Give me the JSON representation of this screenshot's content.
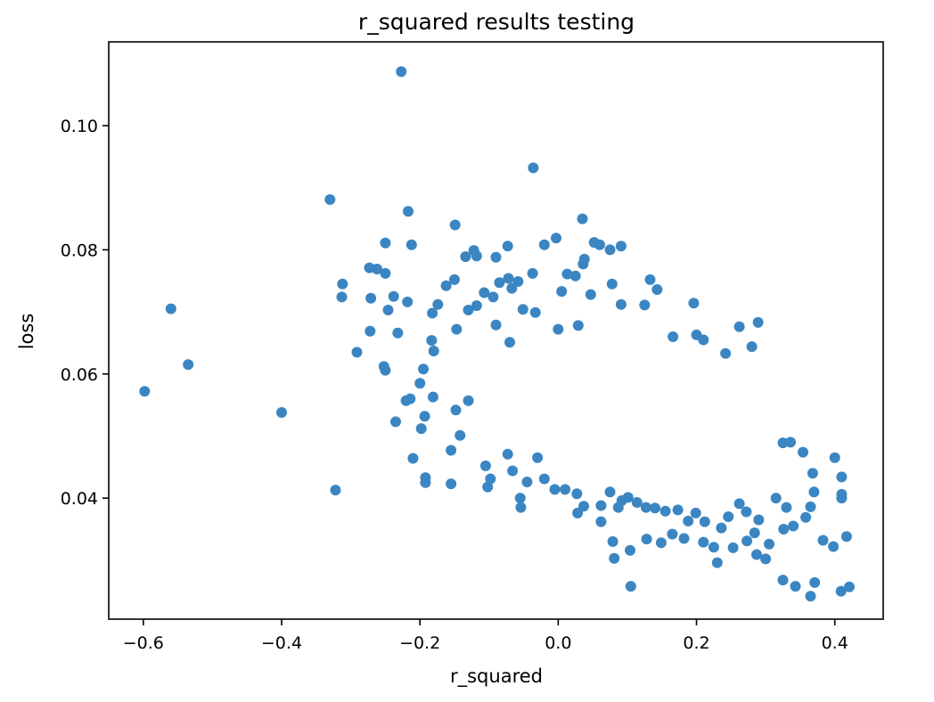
{
  "chart_data": {
    "type": "scatter",
    "title": "r_squared results testing",
    "xlabel": "r_squared",
    "ylabel": "loss",
    "xlim": [
      -0.65,
      0.47
    ],
    "ylim": [
      0.0205,
      0.1135
    ],
    "xticks": [
      -0.6,
      -0.4,
      -0.2,
      0.0,
      0.2,
      0.4
    ],
    "xtick_labels": [
      "−0.6",
      "−0.4",
      "−0.2",
      "0.0",
      "0.2",
      "0.4"
    ],
    "yticks": [
      0.04,
      0.06,
      0.08,
      0.1
    ],
    "ytick_labels": [
      "0.04",
      "0.06",
      "0.08",
      "0.10"
    ],
    "grid": false,
    "marker_color": "#3b86c2",
    "series": [
      {
        "points": [
          [
            -0.227,
            0.1087
          ],
          [
            -0.036,
            0.0932
          ],
          [
            -0.33,
            0.0881
          ],
          [
            -0.217,
            0.0862
          ],
          [
            0.035,
            0.085
          ],
          [
            -0.149,
            0.084
          ],
          [
            -0.25,
            0.0811
          ],
          [
            -0.212,
            0.0808
          ],
          [
            0.052,
            0.0812
          ],
          [
            0.06,
            0.0808
          ],
          [
            0.091,
            0.0806
          ],
          [
            -0.003,
            0.0819
          ],
          [
            -0.02,
            0.0808
          ],
          [
            -0.073,
            0.0806
          ],
          [
            0.075,
            0.08
          ],
          [
            -0.122,
            0.0799
          ],
          [
            -0.118,
            0.079
          ],
          [
            -0.134,
            0.0789
          ],
          [
            -0.09,
            0.0788
          ],
          [
            0.038,
            0.0785
          ],
          [
            0.036,
            0.0777
          ],
          [
            -0.273,
            0.0771
          ],
          [
            -0.262,
            0.0769
          ],
          [
            -0.25,
            0.0762
          ],
          [
            -0.037,
            0.0762
          ],
          [
            0.013,
            0.0761
          ],
          [
            0.025,
            0.0758
          ],
          [
            -0.15,
            0.0752
          ],
          [
            -0.072,
            0.0754
          ],
          [
            0.133,
            0.0752
          ],
          [
            -0.312,
            0.0745
          ],
          [
            -0.162,
            0.0742
          ],
          [
            -0.085,
            0.0747
          ],
          [
            -0.058,
            0.0749
          ],
          [
            0.078,
            0.0745
          ],
          [
            -0.067,
            0.0738
          ],
          [
            0.143,
            0.0736
          ],
          [
            0.005,
            0.0733
          ],
          [
            -0.238,
            0.0725
          ],
          [
            -0.313,
            0.0724
          ],
          [
            -0.271,
            0.0722
          ],
          [
            -0.218,
            0.0716
          ],
          [
            -0.174,
            0.0712
          ],
          [
            0.091,
            0.0712
          ],
          [
            -0.107,
            0.0731
          ],
          [
            -0.094,
            0.0724
          ],
          [
            0.047,
            0.0728
          ],
          [
            -0.56,
            0.0705
          ],
          [
            -0.246,
            0.0703
          ],
          [
            -0.182,
            0.0698
          ],
          [
            -0.13,
            0.0703
          ],
          [
            -0.118,
            0.071
          ],
          [
            -0.051,
            0.0704
          ],
          [
            -0.033,
            0.0699
          ],
          [
            0.125,
            0.0711
          ],
          [
            -0.272,
            0.0669
          ],
          [
            -0.232,
            0.0666
          ],
          [
            -0.147,
            0.0672
          ],
          [
            -0.09,
            0.0679
          ],
          [
            0.0,
            0.0672
          ],
          [
            0.029,
            0.0678
          ],
          [
            0.196,
            0.0714
          ],
          [
            0.262,
            0.0676
          ],
          [
            0.289,
            0.0683
          ],
          [
            -0.183,
            0.0654
          ],
          [
            -0.07,
            0.0651
          ],
          [
            0.166,
            0.066
          ],
          [
            0.2,
            0.0663
          ],
          [
            0.21,
            0.0655
          ],
          [
            0.242,
            0.0633
          ],
          [
            0.28,
            0.0644
          ],
          [
            -0.291,
            0.0635
          ],
          [
            -0.18,
            0.0637
          ],
          [
            -0.535,
            0.0615
          ],
          [
            -0.252,
            0.0612
          ],
          [
            -0.195,
            0.0608
          ],
          [
            -0.25,
            0.0606
          ],
          [
            -0.598,
            0.0572
          ],
          [
            -0.4,
            0.0538
          ],
          [
            -0.214,
            0.056
          ],
          [
            -0.2,
            0.0585
          ],
          [
            -0.181,
            0.0563
          ],
          [
            -0.22,
            0.0557
          ],
          [
            -0.235,
            0.0523
          ],
          [
            -0.193,
            0.0532
          ],
          [
            -0.148,
            0.0542
          ],
          [
            -0.13,
            0.0557
          ],
          [
            -0.155,
            0.0477
          ],
          [
            -0.142,
            0.0501
          ],
          [
            -0.198,
            0.0512
          ],
          [
            -0.21,
            0.0464
          ],
          [
            -0.192,
            0.0433
          ],
          [
            -0.192,
            0.0425
          ],
          [
            -0.155,
            0.0423
          ],
          [
            -0.322,
            0.0413
          ],
          [
            -0.105,
            0.0452
          ],
          [
            -0.098,
            0.0431
          ],
          [
            -0.102,
            0.0418
          ],
          [
            -0.073,
            0.0471
          ],
          [
            -0.066,
            0.0444
          ],
          [
            -0.055,
            0.04
          ],
          [
            -0.054,
            0.0385
          ],
          [
            -0.045,
            0.0426
          ],
          [
            -0.03,
            0.0465
          ],
          [
            -0.02,
            0.0431
          ],
          [
            -0.005,
            0.0414
          ],
          [
            0.01,
            0.0414
          ],
          [
            0.027,
            0.0407
          ],
          [
            0.037,
            0.0387
          ],
          [
            0.028,
            0.0376
          ],
          [
            0.062,
            0.0388
          ],
          [
            0.062,
            0.0362
          ],
          [
            0.079,
            0.033
          ],
          [
            0.081,
            0.0303
          ],
          [
            0.105,
            0.0258
          ],
          [
            0.104,
            0.0316
          ],
          [
            0.128,
            0.0334
          ],
          [
            0.149,
            0.0328
          ],
          [
            0.165,
            0.0342
          ],
          [
            0.182,
            0.0335
          ],
          [
            0.21,
            0.0329
          ],
          [
            0.225,
            0.0321
          ],
          [
            0.23,
            0.0296
          ],
          [
            0.253,
            0.032
          ],
          [
            0.273,
            0.0331
          ],
          [
            0.287,
            0.0309
          ],
          [
            0.3,
            0.0302
          ],
          [
            0.305,
            0.0326
          ],
          [
            0.325,
            0.0268
          ],
          [
            0.343,
            0.0258
          ],
          [
            0.365,
            0.0242
          ],
          [
            0.371,
            0.0264
          ],
          [
            0.383,
            0.0332
          ],
          [
            0.398,
            0.0322
          ],
          [
            0.409,
            0.025
          ],
          [
            0.421,
            0.0257
          ],
          [
            0.417,
            0.0338
          ],
          [
            0.41,
            0.0406
          ],
          [
            0.41,
            0.04
          ],
          [
            0.41,
            0.0434
          ],
          [
            0.4,
            0.0465
          ],
          [
            0.354,
            0.0474
          ],
          [
            0.336,
            0.049
          ],
          [
            0.325,
            0.0489
          ],
          [
            0.368,
            0.044
          ],
          [
            0.37,
            0.041
          ],
          [
            0.365,
            0.0386
          ],
          [
            0.358,
            0.0369
          ],
          [
            0.34,
            0.0355
          ],
          [
            0.326,
            0.035
          ],
          [
            0.33,
            0.0385
          ],
          [
            0.315,
            0.04
          ],
          [
            0.29,
            0.0365
          ],
          [
            0.284,
            0.0344
          ],
          [
            0.272,
            0.0378
          ],
          [
            0.262,
            0.0391
          ],
          [
            0.246,
            0.037
          ],
          [
            0.236,
            0.0352
          ],
          [
            0.212,
            0.0362
          ],
          [
            0.199,
            0.0376
          ],
          [
            0.188,
            0.0363
          ],
          [
            0.173,
            0.0381
          ],
          [
            0.155,
            0.0379
          ],
          [
            0.14,
            0.0384
          ],
          [
            0.127,
            0.0385
          ],
          [
            0.114,
            0.0393
          ],
          [
            0.101,
            0.0401
          ],
          [
            0.092,
            0.0396
          ],
          [
            0.087,
            0.0385
          ],
          [
            0.075,
            0.041
          ]
        ]
      }
    ]
  }
}
